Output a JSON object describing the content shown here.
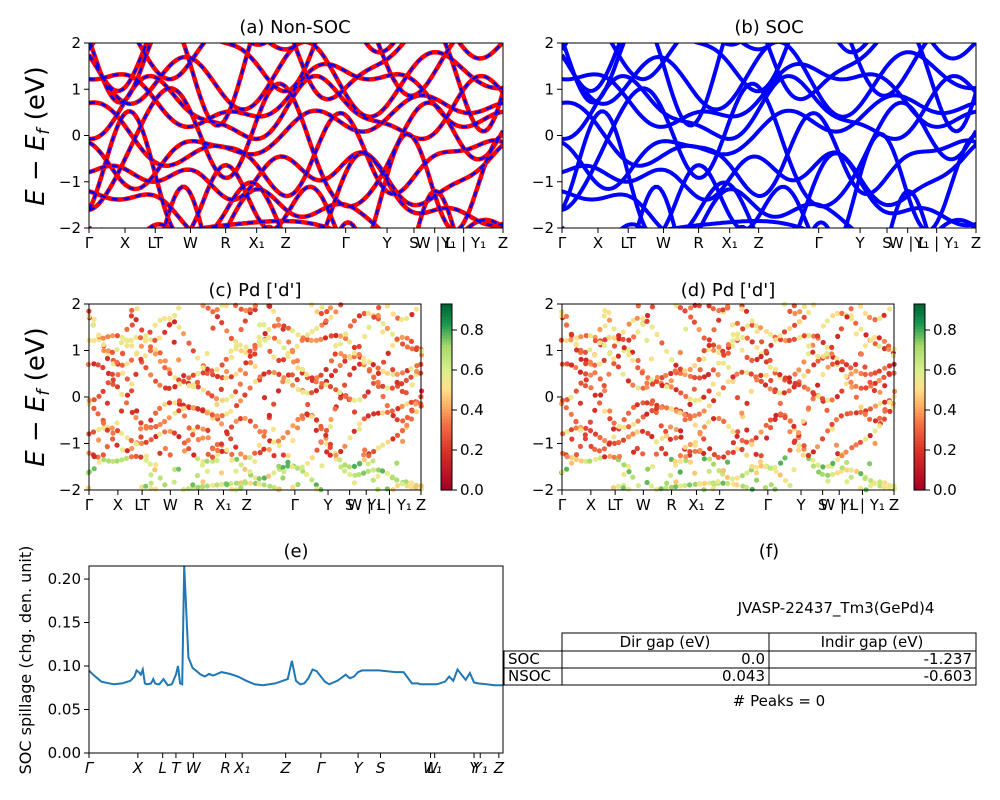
{
  "kpath_labels": [
    "Γ",
    "X",
    "LT",
    "W",
    "R",
    "X₁",
    "Z",
    "Γ",
    "Y",
    "S",
    "W | L",
    "Y₁ | Y₁",
    "Z"
  ],
  "kpath_labels_e": [
    "Γ",
    "X",
    "L",
    "T",
    "W",
    "R",
    "X₁",
    "Z",
    "Γ",
    "Y",
    "S",
    "W",
    "L₁",
    "Y",
    "Y₁",
    "Z"
  ],
  "energy_axis_label": "E − E_f (eV)",
  "colors": {
    "nonsoc": "#ff0000",
    "soc": "#0000ff",
    "spillage": "#1f77b4"
  },
  "chart_data": [
    {
      "id": "a",
      "type": "line",
      "title": "(a) Non-SOC",
      "ylabel": "E − E_f (eV)",
      "ylim": [
        -2,
        2
      ],
      "yticks": [
        -2,
        -1,
        0,
        1,
        2
      ],
      "description_series": [
        {
          "name": "Non-SOC",
          "color": "#ff0000"
        },
        {
          "name": "SOC overlay",
          "color": "#0000ff",
          "dashed": true
        }
      ]
    },
    {
      "id": "b",
      "type": "line",
      "title": "(b) SOC",
      "ylim": [
        -2,
        2
      ],
      "yticks": [
        -2,
        -1,
        0,
        1,
        2
      ],
      "description_series": [
        {
          "name": "SOC",
          "color": "#0000ff"
        }
      ]
    },
    {
      "id": "c",
      "type": "scatter",
      "title": "(c)  Pd ['d']",
      "ylabel": "E − E_f (eV)",
      "ylim": [
        -2,
        2
      ],
      "yticks": [
        -2,
        -1,
        0,
        1,
        2
      ],
      "colorbar": {
        "ticks": [
          "0.0",
          "0.2",
          "0.4",
          "0.6",
          "0.8"
        ],
        "range": [
          0,
          0.93
        ],
        "cmap": "RdYlGn"
      }
    },
    {
      "id": "d",
      "type": "scatter",
      "title": "(d) Pd ['d']",
      "ylim": [
        -2,
        2
      ],
      "yticks": [
        -2,
        -1,
        0,
        1,
        2
      ],
      "colorbar": {
        "ticks": [
          "0.0",
          "0.2",
          "0.4",
          "0.6",
          "0.8"
        ],
        "range": [
          0,
          0.93
        ],
        "cmap": "RdYlGn"
      }
    },
    {
      "id": "e",
      "type": "line",
      "title": "(e)",
      "ylabel": "SOC spillage (chg. den. unit)",
      "ylim": [
        0,
        0.215
      ],
      "yticks": [
        "0.00",
        "0.05",
        "0.10",
        "0.15",
        "0.20"
      ],
      "x": [
        0,
        0.01,
        0.03,
        0.06,
        0.08,
        0.1,
        0.11,
        0.115,
        0.12,
        0.125,
        0.13,
        0.135,
        0.14,
        0.15,
        0.155,
        0.16,
        0.165,
        0.17,
        0.18,
        0.19,
        0.2,
        0.21,
        0.215,
        0.22,
        0.225,
        0.23,
        0.24,
        0.25,
        0.26,
        0.27,
        0.28,
        0.29,
        0.3,
        0.32,
        0.34,
        0.36,
        0.38,
        0.4,
        0.42,
        0.45,
        0.48,
        0.49,
        0.5,
        0.51,
        0.52,
        0.53,
        0.54,
        0.55,
        0.56,
        0.57,
        0.58,
        0.6,
        0.62,
        0.63,
        0.64,
        0.65,
        0.66,
        0.68,
        0.7,
        0.74,
        0.76,
        0.78,
        0.795,
        0.8,
        0.82,
        0.84,
        0.86,
        0.87,
        0.88,
        0.89,
        0.9,
        0.91,
        0.92,
        0.93,
        0.94,
        0.96,
        0.98,
        1.0
      ],
      "values": [
        0.095,
        0.09,
        0.082,
        0.079,
        0.08,
        0.083,
        0.088,
        0.095,
        0.093,
        0.09,
        0.096,
        0.08,
        0.079,
        0.08,
        0.085,
        0.08,
        0.079,
        0.079,
        0.085,
        0.078,
        0.079,
        0.09,
        0.1,
        0.08,
        0.079,
        0.215,
        0.11,
        0.098,
        0.094,
        0.09,
        0.088,
        0.091,
        0.089,
        0.093,
        0.091,
        0.088,
        0.083,
        0.079,
        0.078,
        0.08,
        0.085,
        0.106,
        0.083,
        0.079,
        0.08,
        0.086,
        0.096,
        0.094,
        0.088,
        0.082,
        0.079,
        0.083,
        0.09,
        0.086,
        0.088,
        0.093,
        0.095,
        0.095,
        0.095,
        0.093,
        0.093,
        0.08,
        0.08,
        0.079,
        0.079,
        0.079,
        0.082,
        0.088,
        0.083,
        0.096,
        0.09,
        0.084,
        0.092,
        0.081,
        0.08,
        0.079,
        0.078,
        0.078
      ]
    }
  ],
  "panel_f": {
    "title": "(f)",
    "material": "JVASP-22437_Tm3(GePd)4",
    "columns": [
      "Dir gap (eV)",
      "Indir gap (eV)"
    ],
    "rows": [
      {
        "label": "SOC",
        "dir": "0.0",
        "indir": "-1.237"
      },
      {
        "label": "NSOC",
        "dir": "0.043",
        "indir": "-0.603"
      }
    ],
    "peaks": "# Peaks = 0"
  }
}
